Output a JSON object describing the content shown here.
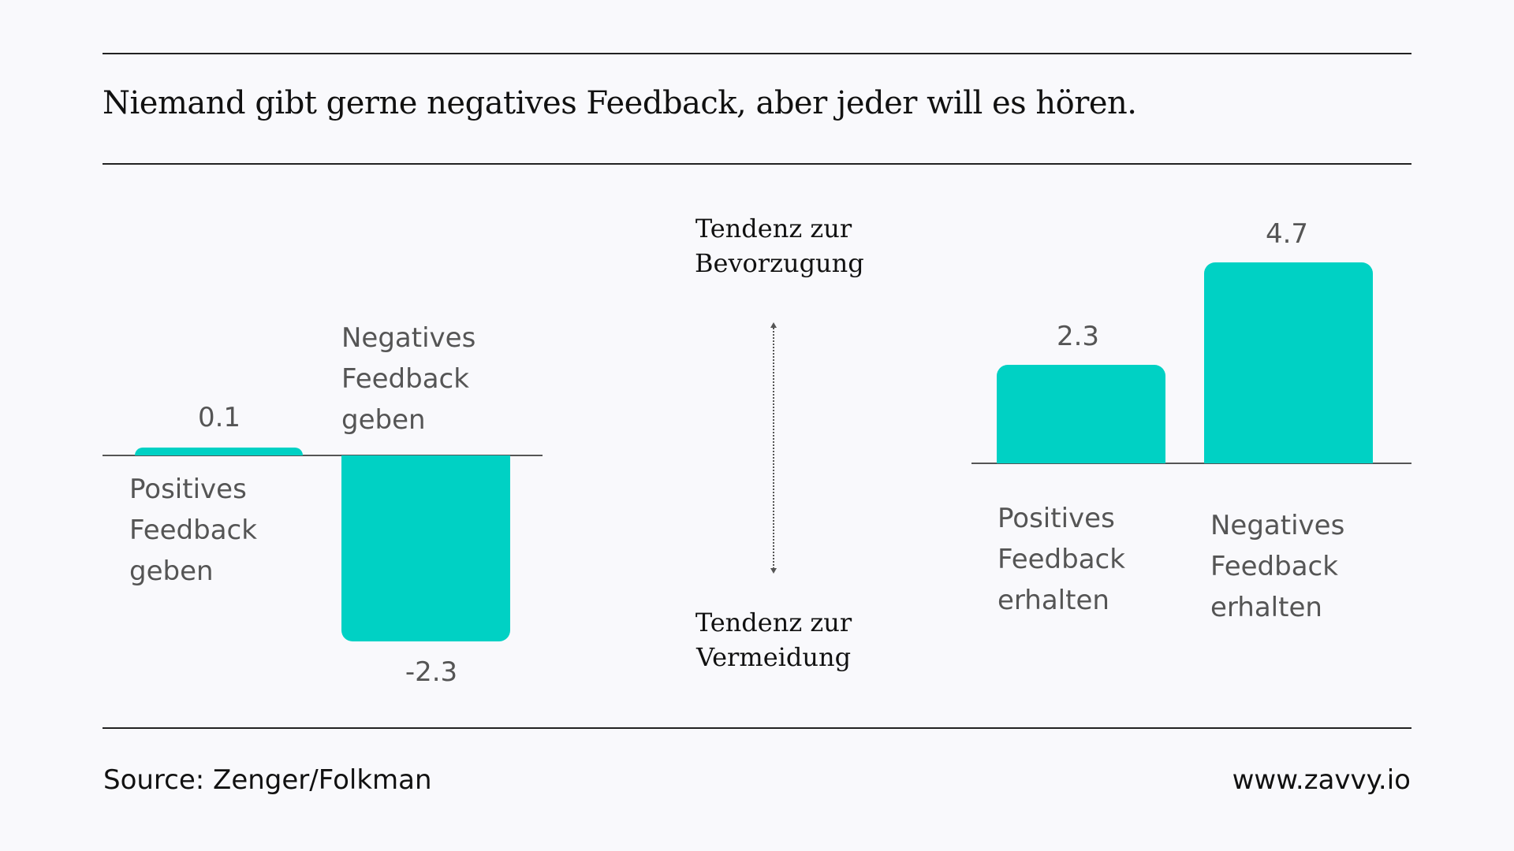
{
  "title": "Niemand gibt gerne negatives Feedback, aber jeder will es hören.",
  "footer": {
    "source": "Source: Zenger/Folkman",
    "website": "www.zavvy.io"
  },
  "middle": {
    "top": [
      "Tendenz zur",
      "Bevorzugung"
    ],
    "bottom": [
      "Tendenz zur",
      "Vermeidung"
    ],
    "arrow_icon": "double-headed-dotted-arrow-icon"
  },
  "colors": {
    "bar": "#00d1c4",
    "text": "#555555",
    "background": "#f9f9fc"
  },
  "chart_data": [
    {
      "type": "bar",
      "categories": [
        "Positives Feedback geben",
        "Negatives Feedback geben"
      ],
      "category_lines": [
        [
          "Positives",
          "Feedback",
          "geben"
        ],
        [
          "Negatives",
          "Feedback",
          "geben"
        ]
      ],
      "values": [
        0.1,
        -2.3
      ],
      "value_labels": [
        "0.1",
        "-2.3"
      ]
    },
    {
      "type": "bar",
      "categories": [
        "Positives Feedback erhalten",
        "Negatives Feedback erhalten"
      ],
      "category_lines": [
        [
          "Positives",
          "Feedback",
          "erhalten"
        ],
        [
          "Negatives",
          "Feedback",
          "erhalten"
        ]
      ],
      "values": [
        2.3,
        4.7
      ],
      "value_labels": [
        "2.3",
        "4.7"
      ]
    }
  ]
}
